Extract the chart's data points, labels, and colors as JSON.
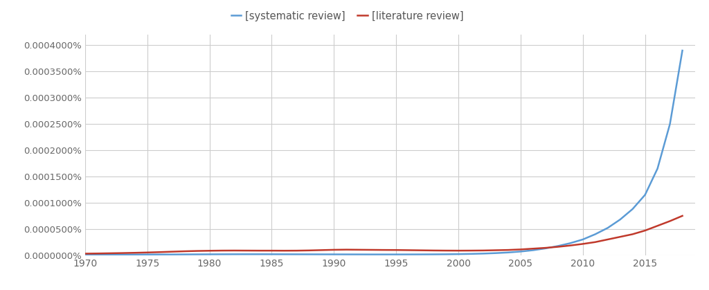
{
  "legend_labels": [
    "[systematic review]",
    "[literature review]"
  ],
  "legend_colors": [
    "#5b9bd5",
    "#c0392b"
  ],
  "background_color": "#ffffff",
  "grid_color": "#cccccc",
  "xlim": [
    1970,
    2019
  ],
  "ylim": [
    0,
    4.2e-06
  ],
  "xticks": [
    1970,
    1975,
    1980,
    1985,
    1990,
    1995,
    2000,
    2005,
    2010,
    2015
  ],
  "yticks": [
    0,
    5e-07,
    1e-06,
    1.5e-06,
    2e-06,
    2.5e-06,
    3e-06,
    3.5e-06,
    4e-06
  ],
  "ytick_labels": [
    "0.0000000%",
    "0.0000500%",
    "0.0001000%",
    "0.0001500%",
    "0.0002000%",
    "0.0002500%",
    "0.0003000%",
    "0.0003500%",
    "0.0004000%"
  ],
  "systematic_review": {
    "years": [
      1970,
      1971,
      1972,
      1973,
      1974,
      1975,
      1976,
      1977,
      1978,
      1979,
      1980,
      1981,
      1982,
      1983,
      1984,
      1985,
      1986,
      1987,
      1988,
      1989,
      1990,
      1991,
      1992,
      1993,
      1994,
      1995,
      1996,
      1997,
      1998,
      1999,
      2000,
      2001,
      2002,
      2003,
      2004,
      2005,
      2006,
      2007,
      2008,
      2009,
      2010,
      2011,
      2012,
      2013,
      2014,
      2015,
      2016,
      2017,
      2018
    ],
    "values": [
      1e-08,
      1.1e-08,
      1.15e-08,
      1.2e-08,
      1.25e-08,
      1.3e-08,
      1.35e-08,
      1.4e-08,
      1.5e-08,
      1.6e-08,
      1.7e-08,
      1.8e-08,
      1.85e-08,
      1.9e-08,
      1.9e-08,
      1.85e-08,
      1.8e-08,
      1.75e-08,
      1.7e-08,
      1.65e-08,
      1.6e-08,
      1.55e-08,
      1.5e-08,
      1.45e-08,
      1.45e-08,
      1.45e-08,
      1.5e-08,
      1.55e-08,
      1.65e-08,
      1.8e-08,
      2.1e-08,
      2.5e-08,
      3.1e-08,
      4e-08,
      5.2e-08,
      7e-08,
      9.5e-08,
      1.3e-07,
      1.75e-07,
      2.3e-07,
      3e-07,
      4e-07,
      5.2e-07,
      6.8e-07,
      8.8e-07,
      1.15e-06,
      1.65e-06,
      2.5e-06,
      3.9e-06
    ]
  },
  "literature_review": {
    "years": [
      1970,
      1971,
      1972,
      1973,
      1974,
      1975,
      1976,
      1977,
      1978,
      1979,
      1980,
      1981,
      1982,
      1983,
      1984,
      1985,
      1986,
      1987,
      1988,
      1989,
      1990,
      1991,
      1992,
      1993,
      1994,
      1995,
      1996,
      1997,
      1998,
      1999,
      2000,
      2001,
      2002,
      2003,
      2004,
      2005,
      2006,
      2007,
      2008,
      2009,
      2010,
      2011,
      2012,
      2013,
      2014,
      2015,
      2016,
      2017,
      2018
    ],
    "values": [
      3e-08,
      3.3e-08,
      3.7e-08,
      4.1e-08,
      4.6e-08,
      5.2e-08,
      5.9e-08,
      6.7e-08,
      7.5e-08,
      8.1e-08,
      8.5e-08,
      8.8e-08,
      8.9e-08,
      8.8e-08,
      8.7e-08,
      8.7e-08,
      8.6e-08,
      8.7e-08,
      9.1e-08,
      9.7e-08,
      1.03e-07,
      1.06e-07,
      1.04e-07,
      1.02e-07,
      1e-07,
      9.9e-08,
      9.6e-08,
      9.3e-08,
      9e-08,
      8.8e-08,
      8.7e-08,
      8.8e-08,
      9e-08,
      9.5e-08,
      1e-07,
      1.1e-07,
      1.25e-07,
      1.4e-07,
      1.6e-07,
      1.85e-07,
      2.15e-07,
      2.5e-07,
      3e-07,
      3.5e-07,
      4e-07,
      4.7e-07,
      5.6e-07,
      6.5e-07,
      7.5e-07
    ]
  }
}
